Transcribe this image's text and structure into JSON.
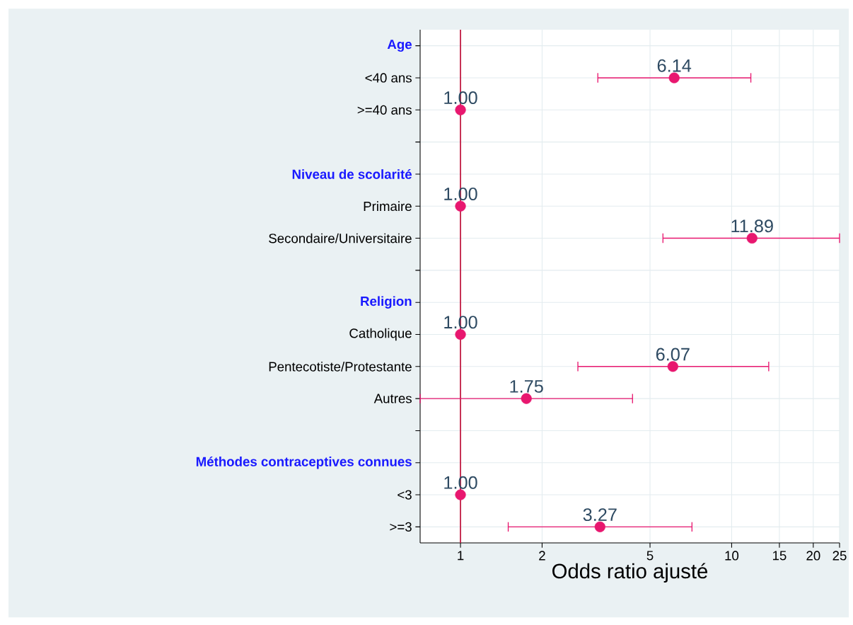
{
  "chart_data": {
    "type": "scatter",
    "orientation": "horizontal",
    "xlabel": "Odds ratio ajusté",
    "log": "x",
    "grid": true,
    "categories": [
      "Age",
      "<40 ans",
      ">=40 ans",
      null,
      "Niveau de scolarité",
      "Primaire",
      "Secondaire/Universitaire",
      null,
      "Religion",
      "Catholique",
      "Pentecotiste/Protestante",
      "Autres",
      null,
      "Méthodes contraceptives connues",
      "<3",
      ">=3"
    ],
    "series": [
      {
        "color": "#e8176f",
        "values": [
          null,
          6.14,
          1.0,
          null,
          null,
          1.0,
          11.89,
          null,
          null,
          1.0,
          6.07,
          1.75,
          null,
          null,
          1.0,
          3.27
        ],
        "errors": [
          null,
          [
            3.21,
            11.77
          ],
          null,
          null,
          null,
          null,
          [
            5.58,
            25
          ],
          null,
          null,
          null,
          [
            2.71,
            13.7
          ],
          [
            0.71,
            4.31
          ],
          null,
          null,
          null,
          [
            1.5,
            7.14
          ]
        ],
        "value_labels": [
          null,
          "6.14",
          "1.00",
          null,
          null,
          "1.00",
          "11.89",
          null,
          null,
          "1.00",
          "6.07",
          "1.75",
          null,
          null,
          "1.00",
          "3.27"
        ]
      }
    ],
    "xlim": [
      0.71,
      25
    ],
    "xticks": [
      1,
      2,
      5,
      10,
      15,
      20,
      25
    ],
    "ref_lines": [
      {
        "axis": "x",
        "value": 1,
        "color": "#c0143c"
      }
    ]
  }
}
